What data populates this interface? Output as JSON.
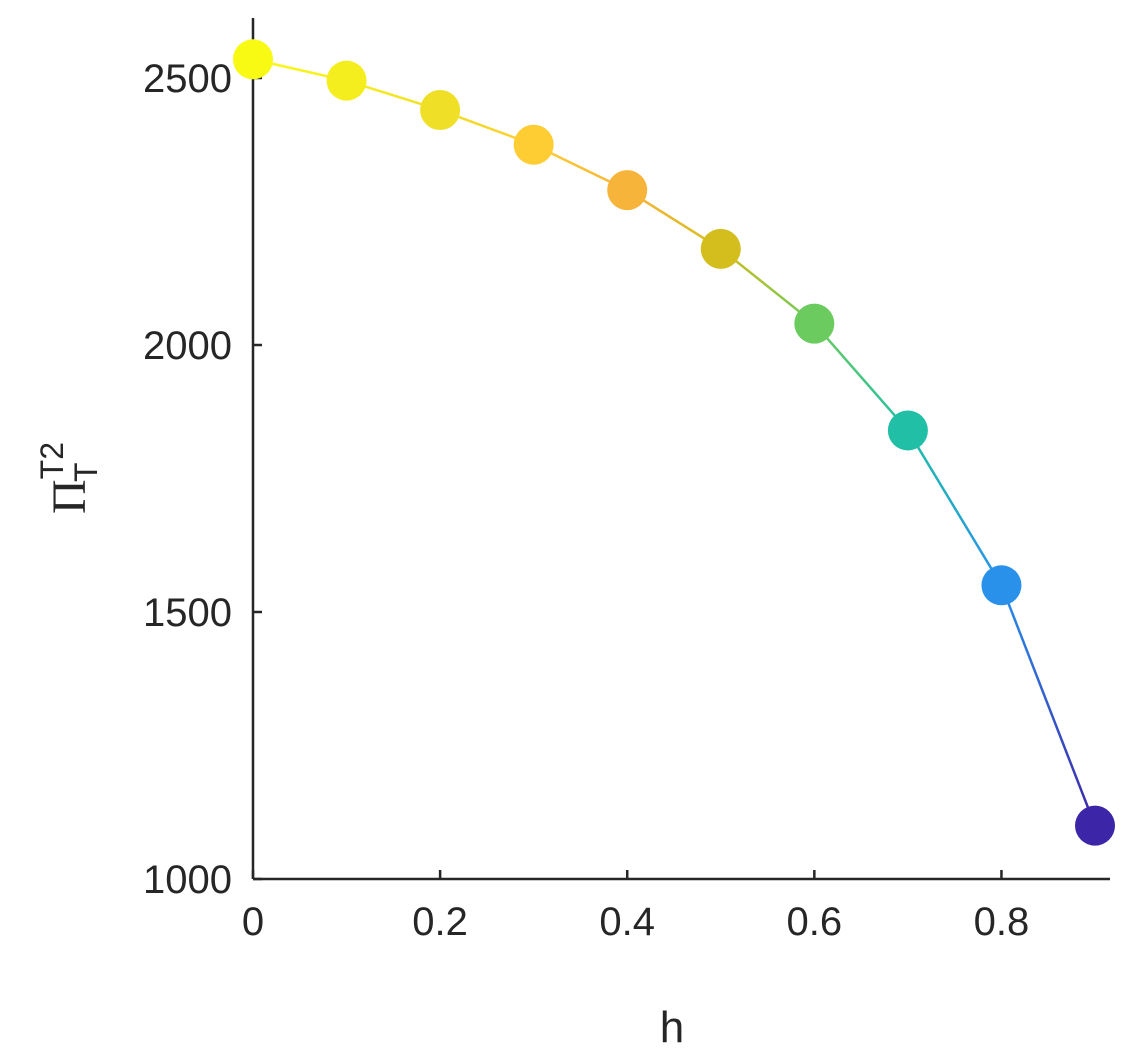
{
  "chart_data": {
    "type": "line",
    "title": "",
    "xlabel": "h",
    "ylabel": {
      "base": "Π",
      "superscript": "T2",
      "subscript": "T"
    },
    "xlim": [
      0,
      0.9
    ],
    "ylim": [
      1000,
      2600
    ],
    "x_ticks": [
      0,
      0.2,
      0.4,
      0.6,
      0.8
    ],
    "x_tick_labels": [
      "0",
      "0.2",
      "0.4",
      "0.6",
      "0.8"
    ],
    "y_ticks": [
      1000,
      1500,
      2000,
      2500
    ],
    "y_tick_labels": [
      "1000",
      "1500",
      "2000",
      "2500"
    ],
    "grid": false,
    "legend": "none",
    "series": [
      {
        "x": [
          0,
          0.1,
          0.2,
          0.3,
          0.4,
          0.5,
          0.6,
          0.7,
          0.8,
          0.9
        ],
        "y": [
          2535,
          2495,
          2440,
          2375,
          2290,
          2180,
          2040,
          1840,
          1550,
          1100
        ],
        "marker_colors": [
          "#F9FA14",
          "#F5EE1F",
          "#F0DF27",
          "#FDCD33",
          "#F7B43B",
          "#D3BE1E",
          "#6CCB5E",
          "#20BFA6",
          "#2A91EB",
          "#3D25A8"
        ]
      }
    ]
  }
}
